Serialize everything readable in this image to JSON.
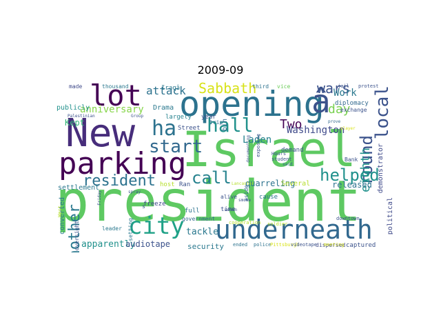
{
  "title": "2009-09",
  "words": [
    {
      "text": "president",
      "color": "#5ec962"
    },
    {
      "text": "Israel",
      "color": "#5ec962"
    },
    {
      "text": "New",
      "color": "#472d7b"
    },
    {
      "text": "opening",
      "color": "#2c728e"
    },
    {
      "text": "â",
      "color": "#3b528b"
    },
    {
      "text": "parking",
      "color": "#440154"
    },
    {
      "text": "lot",
      "color": "#440154"
    },
    {
      "text": "underneath",
      "color": "#31688e"
    },
    {
      "text": "hall",
      "color": "#21918c"
    },
    {
      "text": "ha",
      "color": "#2c728e"
    },
    {
      "text": "local",
      "color": "#3b528b"
    },
    {
      "text": "round",
      "color": "#3b528b"
    },
    {
      "text": "city",
      "color": "#1fa187"
    },
    {
      "text": "start",
      "color": "#31688e"
    },
    {
      "text": "helped",
      "color": "#21918c"
    },
    {
      "text": "call",
      "color": "#26828e"
    },
    {
      "text": "resident",
      "color": "#2c728e"
    },
    {
      "text": "another",
      "color": "#2a788e"
    },
    {
      "text": "eighth",
      "color": "#21918c"
    },
    {
      "text": "wars",
      "color": "#3b528b"
    },
    {
      "text": "Sabbath",
      "color": "#d8e219"
    },
    {
      "text": "day",
      "color": "#7ad151"
    },
    {
      "text": "attack",
      "color": "#2c728e"
    },
    {
      "text": "anniversary",
      "color": "#86d549"
    },
    {
      "text": "Two",
      "color": "#440154"
    },
    {
      "text": "Work",
      "color": "#2a788e"
    },
    {
      "text": "Washington",
      "color": "#3e4989"
    },
    {
      "text": "Kept",
      "color": "#35b779"
    },
    {
      "text": "Laden",
      "color": "#26828e"
    },
    {
      "text": "bin",
      "color": "#31688e"
    },
    {
      "text": "released",
      "color": "#2c728e"
    },
    {
      "text": "tackle",
      "color": "#2a788e"
    },
    {
      "text": "apparently",
      "color": "#21918c"
    },
    {
      "text": "audiotape",
      "color": "#3b528b"
    },
    {
      "text": "quarreling",
      "color": "#2c728e"
    },
    {
      "text": "security",
      "color": "#2a788e"
    },
    {
      "text": "demonstrator",
      "color": "#3e4989"
    },
    {
      "text": "diplomacy",
      "color": "#31688e"
    },
    {
      "text": "settlement",
      "color": "#2a788e"
    },
    {
      "text": "converted",
      "color": "#2a788e"
    },
    {
      "text": "political",
      "color": "#3e4989"
    },
    {
      "text": "publicly",
      "color": "#21918c"
    },
    {
      "text": "Drama",
      "color": "#2a788e"
    },
    {
      "text": "largely",
      "color": "#26828e"
    },
    {
      "text": "Street",
      "color": "#3b528b"
    },
    {
      "text": "year",
      "color": "#3b528b"
    },
    {
      "text": "trip",
      "color": "#31688e"
    },
    {
      "text": "exposing",
      "color": "#3b528b"
    },
    {
      "text": "demand",
      "color": "#3b528b"
    },
    {
      "text": "cause",
      "color": "#2c728e"
    },
    {
      "text": "aside",
      "color": "#31688e"
    },
    {
      "text": "alive",
      "color": "#3b528b"
    },
    {
      "text": "time",
      "color": "#3b528b"
    },
    {
      "text": "full",
      "color": "#2c728e"
    },
    {
      "text": "freeze",
      "color": "#3e4989"
    },
    {
      "text": "oversight",
      "color": "#3b528b"
    },
    {
      "text": "leader",
      "color": "#2a788e"
    },
    {
      "text": "setting",
      "color": "#2a788e"
    },
    {
      "text": "government",
      "color": "#31688e"
    },
    {
      "text": "downtown",
      "color": "#3b528b"
    },
    {
      "text": "captured",
      "color": "#3b528b"
    },
    {
      "text": "dispersed",
      "color": "#3e4989"
    },
    {
      "text": "police",
      "color": "#2c728e"
    },
    {
      "text": "ended",
      "color": "#2c728e"
    },
    {
      "text": "made",
      "color": "#3e4989"
    },
    {
      "text": "thousand",
      "color": "#2a788e"
    },
    {
      "text": "third",
      "color": "#2c728e"
    },
    {
      "text": "vice",
      "color": "#6ccd5a"
    },
    {
      "text": "jail",
      "color": "#3b528b"
    },
    {
      "text": "protest",
      "color": "#3b528b"
    },
    {
      "text": "exchange",
      "color": "#3b528b"
    },
    {
      "text": "Several",
      "color": "#b5de2b"
    },
    {
      "text": "Ran",
      "color": "#3b528b"
    },
    {
      "text": "host",
      "color": "#b5de2b"
    },
    {
      "text": "Bank",
      "color": "#3b528b"
    },
    {
      "text": "Hours",
      "color": "#3b528b"
    },
    {
      "text": "student",
      "color": "#3b528b"
    },
    {
      "text": "prove",
      "color": "#31688e"
    },
    {
      "text": "soldier",
      "color": "#b5de2b"
    },
    {
      "text": "West",
      "color": "#b5de2b"
    },
    {
      "text": "Friday",
      "color": "#3b528b"
    },
    {
      "text": "spray",
      "color": "#3b528b"
    },
    {
      "text": "Iraqâ",
      "color": "#2a788e"
    },
    {
      "text": "Palestinian",
      "color": "#3b528b"
    },
    {
      "text": "Group",
      "color": "#3b528b"
    },
    {
      "text": "s",
      "color": "#3b528b"
    },
    {
      "text": "smoke",
      "color": "#3b528b"
    },
    {
      "text": "woman",
      "color": "#3b528b"
    },
    {
      "text": "Pittsburgh",
      "color": "#d8e219"
    },
    {
      "text": "videotape",
      "color": "#3b528b"
    },
    {
      "text": "meeting",
      "color": "#d8e219"
    },
    {
      "text": "said",
      "color": "#31688e"
    },
    {
      "text": "player",
      "color": "#d8e219"
    },
    {
      "text": "cooperation",
      "color": "#b5de2b"
    },
    {
      "text": "Lancaster",
      "color": "#b5de2b"
    },
    {
      "text": "documenting",
      "color": "#3b528b"
    }
  ]
}
